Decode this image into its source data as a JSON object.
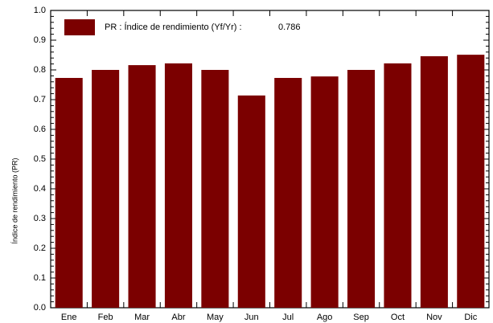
{
  "chart_data": {
    "type": "bar",
    "y_label": "Índice  de  rendimiento  (PR)",
    "categories": [
      "Ene",
      "Feb",
      "Mar",
      "Abr",
      "May",
      "Jun",
      "Jul",
      "Ago",
      "Sep",
      "Oct",
      "Nov",
      "Dic"
    ],
    "series": [
      {
        "name": "PR : Índice de rendimiento (Yf/Yr) :",
        "color": "#7b0000",
        "annual": 0.786,
        "values": [
          0.773,
          0.8,
          0.816,
          0.822,
          0.8,
          0.714,
          0.773,
          0.778,
          0.8,
          0.822,
          0.846,
          0.851
        ]
      }
    ],
    "ylim": [
      0,
      1
    ],
    "yticks": [
      {
        "value": 0,
        "label": "0.0"
      },
      0.1,
      0.2,
      0.3,
      0.4,
      0.5,
      0.6,
      0.7,
      0.8,
      0.9,
      {
        "value": 1,
        "label": "1.0"
      }
    ]
  }
}
